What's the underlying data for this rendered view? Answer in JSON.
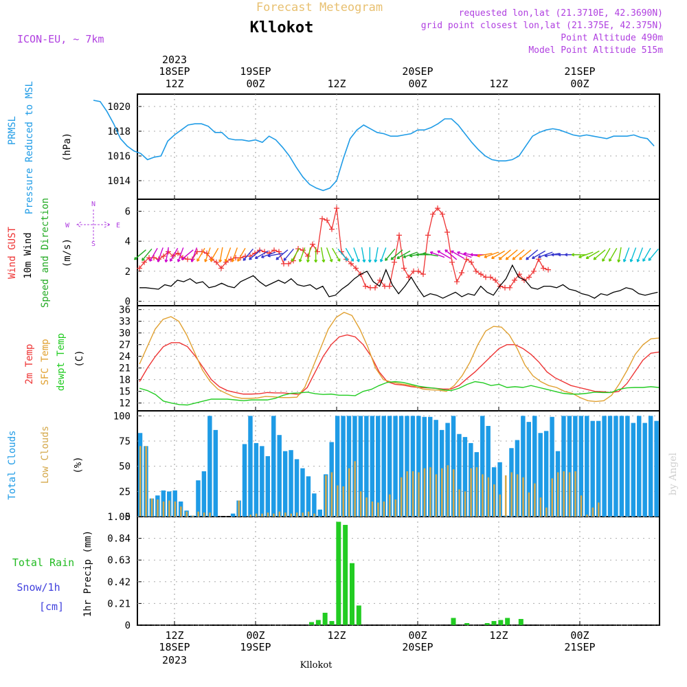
{
  "header": {
    "watermark_title": "Forecast Meteogram",
    "location": "Kllokot",
    "model": "ICON-EU, ~ 7km",
    "requested": "requested lon,lat (21.3710E, 42.3690N)",
    "grid_point": "grid point closest lon,lat (21.375E, 42.375N)",
    "point_alt": "Point Altitude 490m",
    "model_alt": "Model Point Altitude 515m"
  },
  "top_axis": {
    "year": "2023",
    "ticks": [
      {
        "h": 12,
        "l1": "18SEP",
        "l2": "12Z"
      },
      {
        "h": 24,
        "l1": "19SEP",
        "l2": "00Z"
      },
      {
        "h": 36,
        "l1": "",
        "l2": "12Z"
      },
      {
        "h": 48,
        "l1": "20SEP",
        "l2": "00Z"
      },
      {
        "h": 60,
        "l1": "",
        "l2": "12Z"
      },
      {
        "h": 72,
        "l1": "21SEP",
        "l2": "00Z"
      }
    ]
  },
  "bottom_axis": {
    "year": "2023",
    "footer": "Kllokot",
    "ticks": [
      {
        "h": 12,
        "l1": "12Z",
        "l2": "18SEP"
      },
      {
        "h": 24,
        "l1": "00Z",
        "l2": "19SEP"
      },
      {
        "h": 36,
        "l1": "12Z",
        "l2": ""
      },
      {
        "h": 48,
        "l1": "00Z",
        "l2": "20SEP"
      },
      {
        "h": 60,
        "l1": "12Z",
        "l2": ""
      },
      {
        "h": 72,
        "l1": "00Z",
        "l2": "21SEP"
      }
    ]
  },
  "labels": {
    "p1": [
      "PRMSL",
      "Pressure Reduced to MSL",
      "(hPa)"
    ],
    "p2": [
      "Wind GUST",
      "10m Wind",
      "Speed and Direction",
      "(m/s)"
    ],
    "compass": {
      "n": "N",
      "s": "S",
      "w": "W",
      "e": "E"
    },
    "p3": [
      "2m Temp",
      "SFC Temp",
      "dewpt Temp",
      "(C)"
    ],
    "p4": [
      "Total Clouds",
      "Low Clouds",
      "(%)"
    ],
    "p5_left": [
      "Total  Rain",
      "Snow/1h",
      "[cm]"
    ],
    "p5_axis": "1hr Precip (mm)",
    "credit": "by Angel"
  },
  "colors": {
    "pressure": "#1e9be6",
    "gust": "#ee3333",
    "wind": "#000000",
    "temp2m": "#ee3333",
    "sfc": "#e0a030",
    "dewpt": "#22cc22",
    "total_clouds": "#1e9be6",
    "low_clouds": "#d4a84a",
    "rain": "#22cc22",
    "header_purple": "#b040e0",
    "watermark": "#e8c070"
  },
  "chart_data": [
    {
      "type": "line",
      "name": "PRMSL",
      "ylim": [
        1012.5,
        1021
      ],
      "yticks": [
        1014,
        1016,
        1018,
        1020
      ],
      "x_hours": [
        0,
        1,
        2,
        3,
        4,
        5,
        6,
        7,
        8,
        9,
        10,
        11,
        12,
        13,
        14,
        15,
        16,
        17,
        18,
        19,
        20,
        21,
        22,
        23,
        24,
        25,
        26,
        27,
        28,
        29,
        30,
        31,
        32,
        33,
        34,
        35,
        36,
        37,
        38,
        39,
        40,
        41,
        42,
        43,
        44,
        45,
        46,
        47,
        48,
        49,
        50,
        51,
        52,
        53,
        54,
        55,
        56,
        57,
        58,
        59,
        60,
        61,
        62,
        63,
        64,
        65,
        66,
        67,
        68,
        69,
        70,
        71,
        72,
        73,
        74,
        75,
        76,
        77,
        78,
        79,
        80,
        81,
        82,
        83,
        84,
        85,
        86,
        87,
        88,
        89,
        90,
        91,
        92,
        93,
        94,
        95,
        96,
        97,
        98,
        99,
        100,
        101,
        102,
        103
      ],
      "values": [
        1020.5,
        1020.4,
        1019.6,
        1018.6,
        1017.4,
        1016.8,
        1016.4,
        1016.2,
        1015.7,
        1015.9,
        1016.0,
        1017.2,
        1017.7,
        1018.1,
        1018.5,
        1018.6,
        1018.6,
        1018.4,
        1017.9,
        1017.9,
        1017.4,
        1017.3,
        1017.3,
        1017.2,
        1017.3,
        1017.1,
        1017.6,
        1017.3,
        1016.7,
        1016.0,
        1015.1,
        1014.3,
        1013.7,
        1013.4,
        1013.2,
        1013.4,
        1014.0,
        1015.8,
        1017.4,
        1018.1,
        1018.5,
        1018.2,
        1017.9,
        1017.8,
        1017.6,
        1017.6,
        1017.7,
        1017.8,
        1018.1,
        1018.1,
        1018.3,
        1018.6,
        1019.0,
        1019.0,
        1018.5,
        1017.8,
        1017.1,
        1016.5,
        1016.0,
        1015.7,
        1015.6,
        1015.6,
        1015.7,
        1016.0,
        1016.8,
        1017.6,
        1017.9,
        1018.1,
        1018.2,
        1018.1,
        1017.9,
        1017.7,
        1017.6,
        1017.7,
        1017.6,
        1017.5,
        1017.4,
        1017.6,
        1017.6,
        1017.6,
        1017.7,
        1017.5,
        1017.4,
        1016.8,
        1016.1,
        1016.0,
        1016.0,
        1016.0,
        1016.0,
        1016.0,
        1016.0,
        1016.0,
        1016.0,
        1016.0,
        1016.0,
        1016.0,
        1016.0,
        1016.0,
        1016.0,
        1016.0,
        1016.0,
        1016.0,
        1016.0,
        1016.0
      ]
    },
    {
      "type": "line",
      "name": "Wind",
      "ylim": [
        -0.3,
        6.8
      ],
      "yticks": [
        0,
        2,
        4,
        6
      ],
      "series": [
        {
          "name": "Wind GUST",
          "values": [
            2.2,
            2.6,
            2.9,
            2.9,
            2.8,
            3.0,
            3.3,
            3.0,
            3.2,
            2.9,
            2.8,
            2.8,
            3.3,
            3.3,
            3.2,
            2.8,
            2.6,
            2.2,
            2.6,
            2.8,
            2.9,
            2.9,
            3.0,
            3.0,
            3.2,
            3.4,
            3.3,
            3.2,
            3.4,
            3.3,
            2.5,
            2.5,
            2.7,
            3.5,
            3.4,
            3.0,
            3.8,
            3.3,
            5.5,
            5.4,
            4.8,
            6.2,
            3.3,
            2.8,
            2.5,
            2.2,
            1.8,
            1.0,
            0.9,
            0.9,
            1.4,
            1.0,
            1.0,
            2.6,
            4.4,
            2.2,
            1.6,
            2.0,
            2.0,
            1.8,
            4.4,
            5.8,
            6.2,
            5.8,
            4.6,
            2.6,
            1.3,
            1.9,
            2.8,
            2.6,
            2.0,
            1.8,
            1.6,
            1.6,
            1.4,
            1.0,
            0.9,
            0.9,
            1.4,
            1.8,
            1.4,
            1.6,
            2.0,
            2.8,
            2.2,
            2.1
          ]
        },
        {
          "name": "10m Wind",
          "values": [
            0.9,
            0.9,
            0.85,
            0.8,
            1.1,
            1.0,
            1.4,
            1.3,
            1.5,
            1.2,
            1.3,
            0.9,
            1.0,
            1.2,
            1.0,
            0.9,
            1.3,
            1.5,
            1.7,
            1.3,
            1.0,
            1.2,
            1.4,
            1.2,
            1.5,
            1.1,
            1.0,
            1.1,
            0.8,
            1.0,
            0.3,
            0.4,
            0.8,
            1.1,
            1.5,
            1.8,
            2.0,
            1.3,
            1.0,
            2.1,
            1.1,
            0.5,
            1.0,
            1.6,
            0.9,
            0.3,
            0.5,
            0.4,
            0.2,
            0.4,
            0.6,
            0.3,
            0.5,
            0.4,
            1.0,
            0.6,
            0.4,
            1.0,
            1.5,
            2.4,
            1.6,
            1.4,
            0.9,
            0.8,
            1.0,
            1.0,
            0.9,
            1.1,
            0.8,
            0.7,
            0.5,
            0.4,
            0.2,
            0.5,
            0.4,
            0.6,
            0.7,
            0.9,
            0.8,
            0.5,
            0.4,
            0.5,
            0.6
          ]
        }
      ],
      "arrow_hours": [
        0,
        1,
        2,
        3,
        4,
        5,
        6,
        7,
        8,
        9,
        10,
        11,
        12,
        13,
        14,
        15,
        16,
        17,
        18,
        19,
        20,
        21,
        22,
        23,
        24,
        25,
        26,
        27,
        28,
        29,
        30,
        31,
        32,
        33,
        34,
        35,
        36,
        37,
        38,
        39,
        40,
        41,
        42,
        43,
        44,
        45,
        46,
        47,
        48,
        49,
        50,
        51,
        52,
        53,
        54,
        55,
        56,
        57,
        58,
        59,
        60,
        61,
        62,
        63,
        64,
        65,
        66,
        67,
        68,
        69,
        70,
        71,
        72,
        73,
        74,
        75,
        76,
        77,
        78,
        79,
        80,
        81,
        82,
        83,
        84,
        85,
        86,
        87,
        88,
        89,
        90,
        91,
        92,
        93,
        94,
        95,
        96,
        97,
        98,
        99,
        100,
        101,
        102,
        103
      ],
      "arrow_dir_deg": [
        100,
        110,
        120,
        130,
        150,
        160,
        170,
        190,
        200,
        200,
        210,
        220,
        230,
        220,
        210,
        200,
        190,
        210,
        200,
        230,
        200,
        210,
        200,
        210,
        190,
        200,
        200,
        210,
        220,
        230,
        240,
        250,
        260,
        230,
        220,
        210,
        200,
        190,
        180,
        170,
        160,
        150,
        140,
        150,
        160,
        170,
        180,
        190,
        200,
        220,
        230,
        240,
        250,
        260,
        270,
        280,
        290,
        300,
        310,
        300,
        290,
        280,
        270,
        260,
        250,
        240,
        230,
        230,
        230,
        230,
        230,
        240,
        250,
        260,
        270,
        270,
        270,
        270,
        250,
        240,
        230,
        210,
        210,
        190,
        200,
        200,
        200,
        210,
        220,
        230,
        240,
        250,
        260,
        270,
        260,
        250,
        240,
        230,
        220,
        210,
        200,
        190,
        180,
        170
      ]
    },
    {
      "type": "line",
      "name": "Temperature",
      "ylim": [
        10,
        37
      ],
      "yticks": [
        12,
        15,
        18,
        21,
        24,
        27,
        30,
        33,
        36
      ],
      "series": [
        {
          "name": "2m Temp",
          "values": [
            17.5,
            21,
            24,
            26.5,
            27.5,
            27.5,
            26.5,
            24,
            21,
            18,
            16.2,
            15.2,
            14.7,
            14.3,
            14.3,
            14.4,
            14.7,
            14.6,
            14.6,
            14.4,
            14.2,
            16,
            20,
            24,
            27,
            29,
            29.5,
            29,
            27,
            24,
            20,
            17.5,
            16.8,
            16.6,
            16.2,
            16,
            15.9,
            15.8,
            15.6,
            15.6,
            16.5,
            18.3,
            20,
            22,
            24,
            26,
            27,
            27,
            26,
            24.5,
            22.5,
            20,
            18.5,
            17.5,
            16.5,
            16,
            15.5,
            15,
            14.9,
            14.7,
            15,
            17,
            20,
            23,
            24.8,
            25.1
          ]
        },
        {
          "name": "SFC Temp",
          "values": [
            22,
            26.5,
            31,
            33.5,
            34.2,
            33,
            29.5,
            25,
            20.5,
            17.5,
            15.5,
            14.5,
            13.6,
            13.2,
            13.2,
            13.3,
            13.7,
            13.6,
            13.4,
            13.4,
            13.5,
            16,
            21,
            26,
            31,
            34,
            35.3,
            34.5,
            31,
            26.5,
            21,
            18,
            17.4,
            17,
            16.7,
            16.3,
            15.6,
            15.4,
            15.3,
            15,
            16.5,
            19,
            22.5,
            27,
            30.5,
            31.7,
            31.5,
            29.5,
            26,
            21.7,
            19,
            17.5,
            16.5,
            16,
            15,
            14.5,
            13.4,
            12.6,
            12.4,
            12.6,
            14,
            17,
            20.5,
            24.5,
            27,
            28.5,
            28.7
          ]
        },
        {
          "name": "dewpt Temp",
          "values": [
            15.8,
            15.2,
            14.2,
            12.5,
            12.0,
            11.6,
            11.5,
            12.0,
            12.5,
            13.0,
            13.0,
            13.0,
            12.8,
            12.6,
            12.8,
            12.8,
            12.8,
            13.2,
            14.0,
            14.5,
            14.6,
            14.8,
            14.4,
            14.2,
            14.3,
            14.0,
            14.0,
            13.9,
            15.0,
            15.5,
            16.5,
            17.3,
            17.5,
            17.3,
            16.8,
            16.3,
            16.0,
            15.8,
            15.4,
            15.2,
            15.8,
            16.8,
            17.5,
            17.2,
            16.5,
            16.8,
            16.0,
            16.2,
            16.0,
            16.5,
            16.0,
            15.5,
            15.0,
            14.5,
            14.3,
            14.3,
            14.5,
            14.8,
            14.7,
            14.7,
            15.5,
            15.9,
            16.0,
            16.0,
            16.2,
            16.0
          ]
        }
      ]
    },
    {
      "type": "bar",
      "name": "Clouds",
      "ylim": [
        0,
        105
      ],
      "yticks": [
        0,
        25,
        50,
        75,
        100
      ],
      "series": [
        {
          "name": "Total Clouds",
          "values": [
            83,
            70,
            18,
            21,
            26,
            25,
            26,
            15,
            6,
            1,
            36,
            45,
            100,
            86,
            0,
            0,
            3,
            16,
            72,
            100,
            73,
            70,
            60,
            100,
            81,
            65,
            66,
            57,
            48,
            40,
            23,
            7,
            42,
            74,
            100,
            100,
            100,
            100,
            100,
            100,
            100,
            100,
            100,
            100,
            100,
            100,
            100,
            100,
            100,
            99,
            99,
            96,
            86,
            93,
            100,
            82,
            79,
            73,
            64,
            100,
            90,
            49,
            54,
            1,
            68,
            76,
            100,
            94,
            100,
            83,
            85,
            99,
            65,
            100,
            100,
            100,
            100,
            100,
            95,
            95,
            100,
            100,
            100,
            100,
            100,
            93,
            100,
            93,
            100,
            95
          ]
        },
        {
          "name": "Low Clouds",
          "values": [
            70,
            70,
            18,
            17,
            15,
            16,
            15,
            10,
            5,
            1,
            5,
            4,
            4,
            0,
            0,
            0,
            0,
            16,
            0,
            2,
            3,
            3,
            4,
            3,
            5,
            4,
            3,
            4,
            4,
            5,
            3,
            0,
            41,
            44,
            31,
            30,
            48,
            55,
            25,
            19,
            15,
            14,
            15,
            22,
            17,
            39,
            45,
            45,
            44,
            48,
            49,
            42,
            48,
            51,
            47,
            27,
            25,
            48,
            49,
            42,
            39,
            32,
            22,
            41,
            44,
            42,
            39,
            24,
            33,
            19,
            9,
            38,
            44,
            45,
            44,
            45,
            21,
            2,
            9,
            14
          ]
        }
      ]
    },
    {
      "type": "bar",
      "name": "1hr Precip",
      "ylim": [
        0,
        1.05
      ],
      "yticks": [
        0,
        0.21,
        0.42,
        0.63,
        0.84,
        1.05
      ],
      "x_hours": [
        33,
        34,
        35,
        36,
        37,
        38,
        39,
        40,
        41,
        42,
        54,
        56,
        59,
        60,
        61,
        62,
        64
      ],
      "values": [
        0.03,
        0.05,
        0.12,
        0.04,
        1.0,
        0.97,
        0.6,
        0.19,
        0,
        0,
        0.07,
        0.02,
        0.02,
        0.04,
        0.05,
        0.07,
        0.06
      ]
    }
  ]
}
